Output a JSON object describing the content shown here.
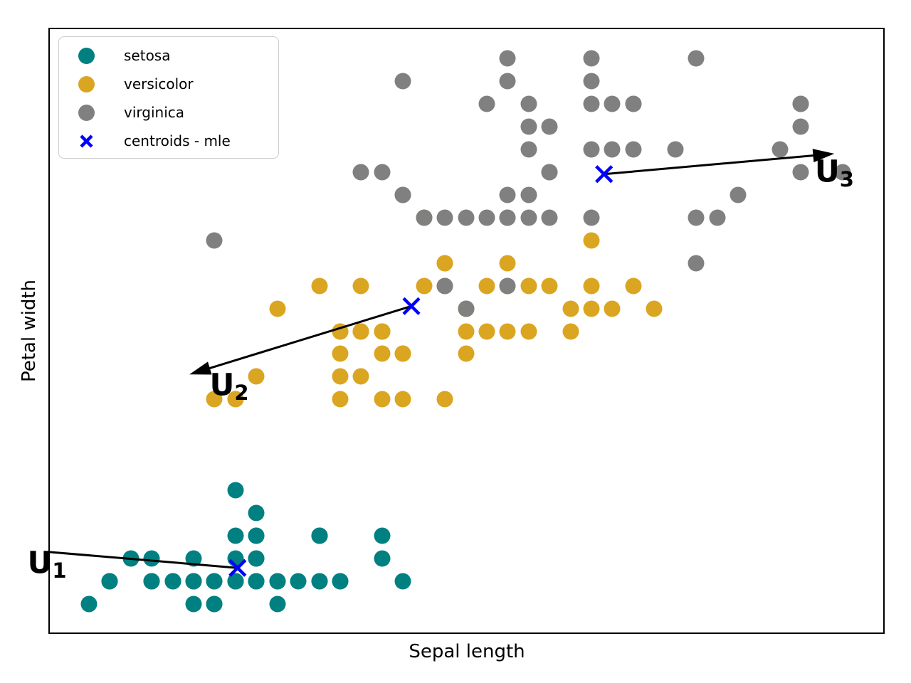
{
  "figure": {
    "xlabel": "Sepal length",
    "ylabel": "Petal width",
    "background": "#ffffff",
    "plot_border_color": "#000000",
    "arrow_color": "#000000"
  },
  "legend": {
    "position": "upper-left",
    "items": [
      {
        "label": "setosa",
        "marker": "circle",
        "color": "#008080"
      },
      {
        "label": "versicolor",
        "marker": "circle",
        "color": "#DAA520"
      },
      {
        "label": "virginica",
        "marker": "circle",
        "color": "#808080"
      },
      {
        "label": "centroids - mle",
        "marker": "x",
        "color": "#0000FF"
      }
    ]
  },
  "chart_data": {
    "type": "scatter",
    "title": "",
    "xlabel": "Sepal length",
    "ylabel": "Petal width",
    "xlim": [
      4.11,
      8.1
    ],
    "ylim": [
      -0.03,
      2.63
    ],
    "grid": false,
    "legend_position": "upper left",
    "series": [
      {
        "name": "setosa",
        "color": "#008080",
        "points": [
          [
            5.1,
            0.2
          ],
          [
            4.9,
            0.2
          ],
          [
            4.7,
            0.2
          ],
          [
            4.6,
            0.2
          ],
          [
            5.0,
            0.2
          ],
          [
            5.4,
            0.4
          ],
          [
            4.6,
            0.3
          ],
          [
            5.0,
            0.2
          ],
          [
            4.4,
            0.2
          ],
          [
            4.9,
            0.1
          ],
          [
            5.4,
            0.2
          ],
          [
            4.8,
            0.2
          ],
          [
            4.8,
            0.1
          ],
          [
            4.3,
            0.1
          ],
          [
            5.8,
            0.2
          ],
          [
            5.7,
            0.4
          ],
          [
            5.4,
            0.4
          ],
          [
            5.1,
            0.3
          ],
          [
            5.7,
            0.3
          ],
          [
            5.1,
            0.3
          ],
          [
            5.4,
            0.2
          ],
          [
            5.1,
            0.4
          ],
          [
            4.6,
            0.2
          ],
          [
            5.1,
            0.5
          ],
          [
            4.8,
            0.2
          ],
          [
            5.0,
            0.2
          ],
          [
            5.0,
            0.4
          ],
          [
            5.2,
            0.2
          ],
          [
            5.2,
            0.2
          ],
          [
            4.7,
            0.2
          ],
          [
            4.8,
            0.2
          ],
          [
            5.4,
            0.4
          ],
          [
            5.2,
            0.1
          ],
          [
            5.5,
            0.2
          ],
          [
            4.9,
            0.2
          ],
          [
            5.0,
            0.2
          ],
          [
            5.5,
            0.2
          ],
          [
            4.9,
            0.1
          ],
          [
            4.4,
            0.2
          ],
          [
            5.1,
            0.2
          ],
          [
            5.0,
            0.3
          ],
          [
            4.5,
            0.3
          ],
          [
            4.4,
            0.2
          ],
          [
            5.0,
            0.6
          ],
          [
            5.1,
            0.4
          ],
          [
            4.8,
            0.3
          ],
          [
            5.1,
            0.2
          ],
          [
            4.6,
            0.2
          ],
          [
            5.3,
            0.2
          ],
          [
            5.0,
            0.2
          ]
        ]
      },
      {
        "name": "versicolor",
        "color": "#DAA520",
        "points": [
          [
            7.0,
            1.4
          ],
          [
            6.4,
            1.5
          ],
          [
            6.9,
            1.5
          ],
          [
            5.5,
            1.3
          ],
          [
            6.5,
            1.5
          ],
          [
            5.7,
            1.3
          ],
          [
            6.3,
            1.6
          ],
          [
            4.9,
            1.0
          ],
          [
            6.6,
            1.3
          ],
          [
            5.2,
            1.4
          ],
          [
            5.0,
            1.0
          ],
          [
            5.9,
            1.5
          ],
          [
            6.0,
            1.0
          ],
          [
            6.1,
            1.4
          ],
          [
            5.6,
            1.3
          ],
          [
            6.7,
            1.4
          ],
          [
            5.6,
            1.5
          ],
          [
            5.8,
            1.0
          ],
          [
            6.2,
            1.5
          ],
          [
            5.6,
            1.1
          ],
          [
            5.9,
            1.8
          ],
          [
            6.1,
            1.3
          ],
          [
            6.3,
            1.5
          ],
          [
            6.1,
            1.2
          ],
          [
            6.4,
            1.3
          ],
          [
            6.6,
            1.4
          ],
          [
            6.8,
            1.4
          ],
          [
            6.7,
            1.7
          ],
          [
            6.0,
            1.5
          ],
          [
            5.7,
            1.0
          ],
          [
            5.5,
            1.1
          ],
          [
            5.5,
            1.0
          ],
          [
            5.8,
            1.2
          ],
          [
            6.0,
            1.6
          ],
          [
            5.4,
            1.5
          ],
          [
            6.0,
            1.6
          ],
          [
            6.7,
            1.5
          ],
          [
            6.3,
            1.3
          ],
          [
            5.6,
            1.3
          ],
          [
            5.5,
            1.3
          ],
          [
            5.5,
            1.2
          ],
          [
            6.1,
            1.4
          ],
          [
            5.8,
            1.2
          ],
          [
            5.0,
            1.0
          ],
          [
            5.6,
            1.3
          ],
          [
            5.7,
            1.2
          ],
          [
            5.7,
            1.3
          ],
          [
            6.2,
            1.3
          ],
          [
            5.1,
            1.1
          ],
          [
            5.7,
            1.3
          ]
        ]
      },
      {
        "name": "virginica",
        "color": "#808080",
        "points": [
          [
            6.3,
            2.5
          ],
          [
            5.8,
            1.9
          ],
          [
            7.1,
            2.1
          ],
          [
            6.3,
            1.8
          ],
          [
            6.5,
            2.2
          ],
          [
            7.6,
            2.1
          ],
          [
            4.9,
            1.7
          ],
          [
            7.3,
            1.8
          ],
          [
            6.7,
            1.8
          ],
          [
            7.2,
            2.5
          ],
          [
            6.5,
            2.0
          ],
          [
            6.4,
            1.9
          ],
          [
            6.8,
            2.1
          ],
          [
            5.7,
            2.0
          ],
          [
            5.8,
            2.4
          ],
          [
            6.4,
            2.3
          ],
          [
            6.5,
            1.8
          ],
          [
            7.7,
            2.2
          ],
          [
            7.7,
            2.3
          ],
          [
            6.0,
            1.5
          ],
          [
            6.9,
            2.3
          ],
          [
            5.6,
            2.0
          ],
          [
            7.7,
            2.0
          ],
          [
            6.3,
            1.8
          ],
          [
            6.7,
            2.1
          ],
          [
            7.2,
            1.8
          ],
          [
            6.2,
            1.8
          ],
          [
            6.1,
            1.8
          ],
          [
            6.4,
            2.1
          ],
          [
            7.2,
            1.6
          ],
          [
            7.4,
            1.9
          ],
          [
            7.9,
            2.0
          ],
          [
            6.4,
            2.2
          ],
          [
            6.3,
            1.5
          ],
          [
            6.1,
            1.4
          ],
          [
            7.7,
            2.3
          ],
          [
            6.3,
            2.4
          ],
          [
            6.4,
            1.8
          ],
          [
            6.0,
            1.8
          ],
          [
            6.9,
            2.1
          ],
          [
            6.7,
            2.4
          ],
          [
            6.9,
            2.3
          ],
          [
            5.8,
            1.9
          ],
          [
            6.8,
            2.3
          ],
          [
            6.7,
            2.5
          ],
          [
            6.7,
            2.3
          ],
          [
            6.3,
            1.9
          ],
          [
            6.5,
            2.0
          ],
          [
            6.2,
            2.3
          ],
          [
            5.9,
            1.8
          ]
        ]
      }
    ],
    "centroids": {
      "name": "centroids - mle",
      "color": "#0000FF",
      "points": [
        [
          5.01,
          0.26
        ],
        [
          5.84,
          1.41
        ],
        [
          6.76,
          1.99
        ]
      ]
    },
    "arrows": [
      {
        "label": "U",
        "sub": "1",
        "from": [
          5.01,
          0.26
        ],
        "to": [
          4.11,
          0.33
        ],
        "head": false,
        "label_pos": [
          4.1,
          0.28
        ]
      },
      {
        "label": "U",
        "sub": "2",
        "from": [
          5.84,
          1.41
        ],
        "to": [
          4.78,
          1.11
        ],
        "head": true,
        "label_pos": [
          4.97,
          1.06
        ]
      },
      {
        "label": "U",
        "sub": "3",
        "from": [
          6.76,
          1.99
        ],
        "to": [
          7.86,
          2.08
        ],
        "head": true,
        "label_pos": [
          7.86,
          2.0
        ]
      }
    ]
  }
}
